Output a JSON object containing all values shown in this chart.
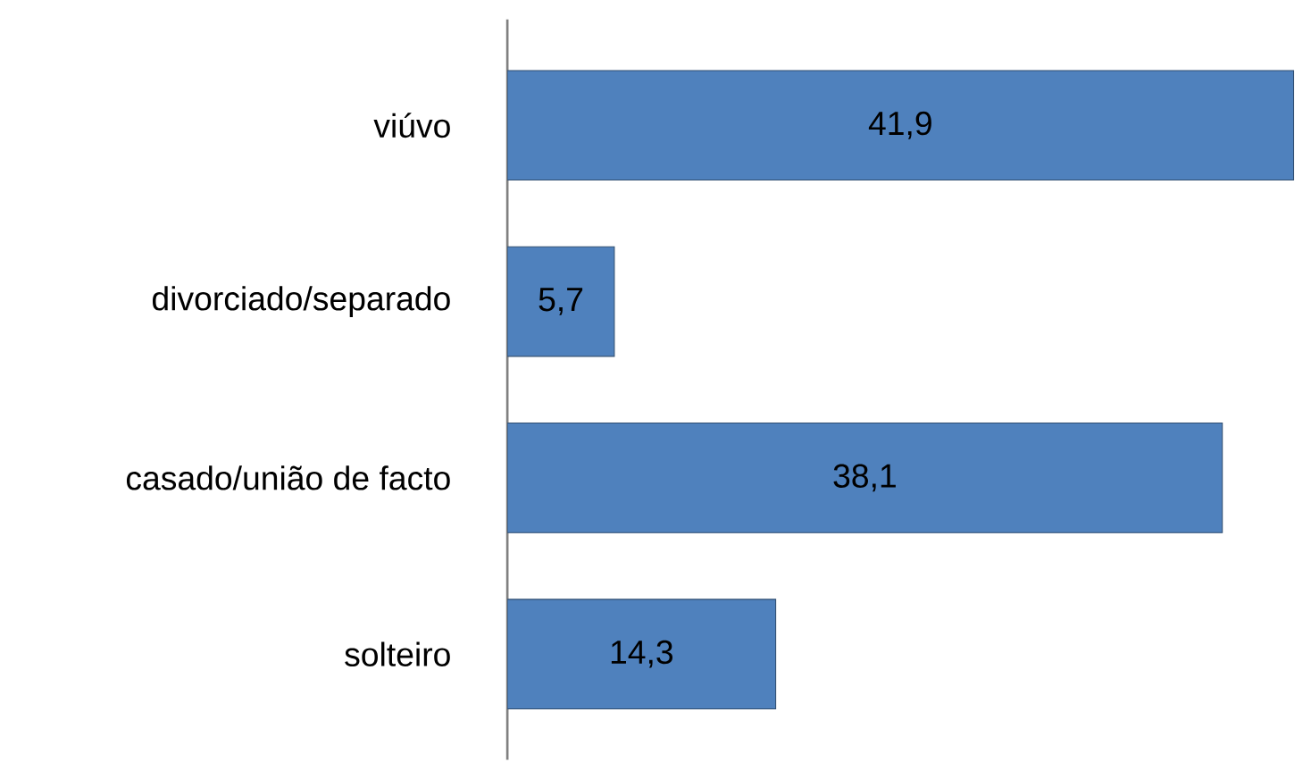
{
  "chart_data": {
    "type": "bar",
    "orientation": "horizontal",
    "categories": [
      "viúvo",
      "divorciado/separado",
      "casado/união de facto",
      "solteiro"
    ],
    "values": [
      41.9,
      5.7,
      38.1,
      14.3
    ],
    "value_labels": [
      "41,9",
      "5,7",
      "38,1",
      "14,3"
    ],
    "color": "#4f81bd"
  }
}
